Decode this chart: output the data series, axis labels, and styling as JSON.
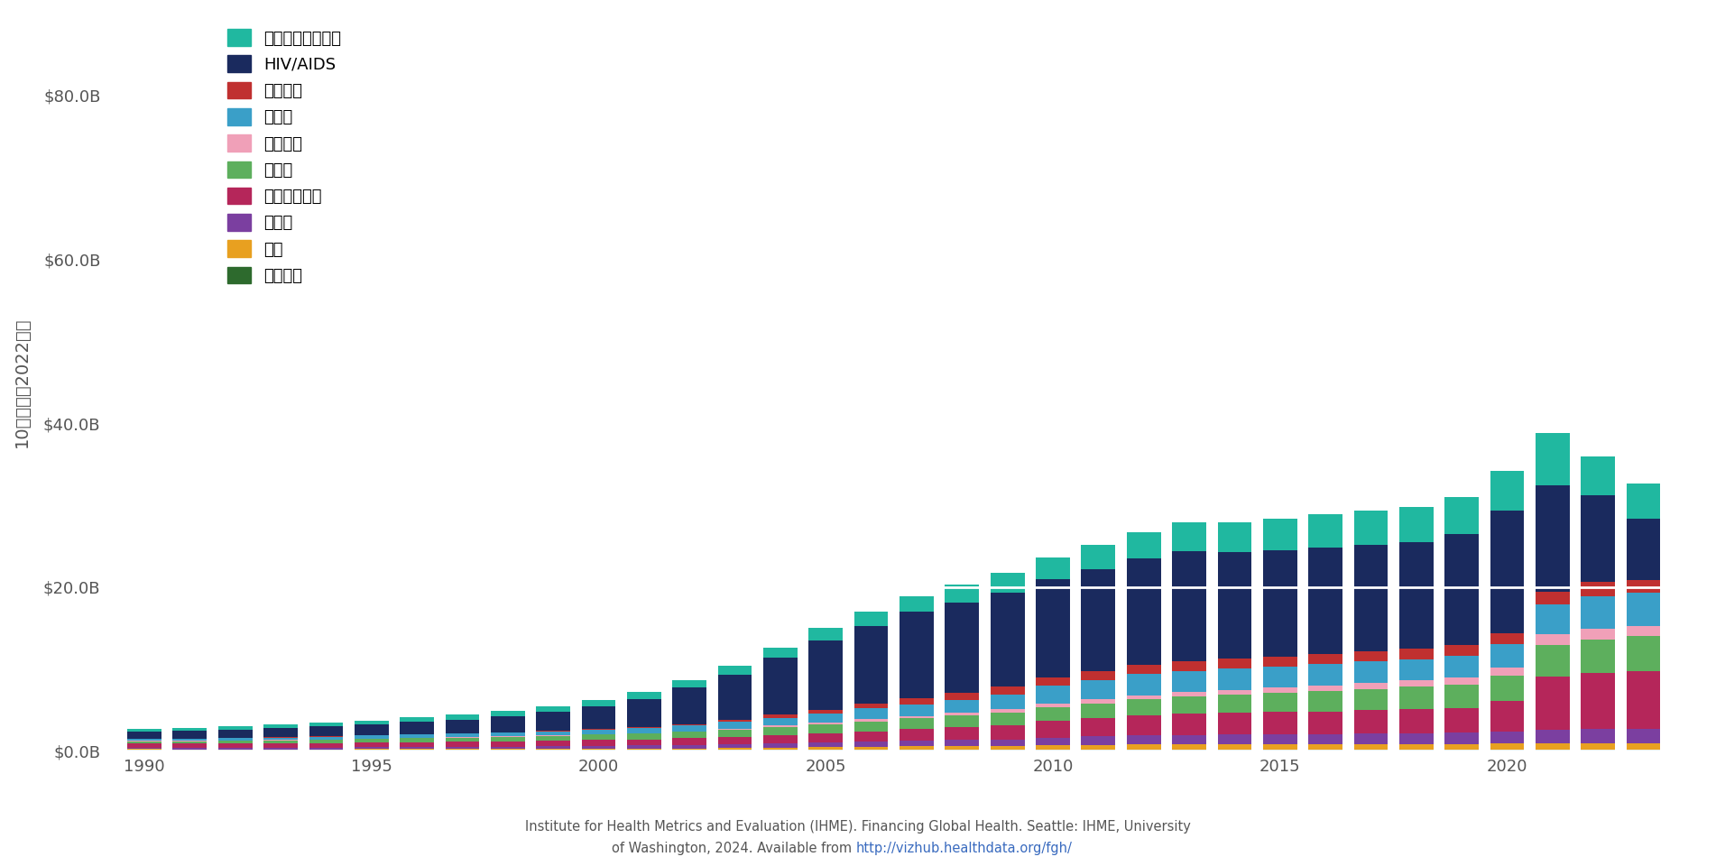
{
  "years": [
    1990,
    1991,
    1992,
    1993,
    1994,
    1995,
    1996,
    1997,
    1998,
    1999,
    2000,
    2001,
    2002,
    2003,
    2004,
    2005,
    2006,
    2007,
    2008,
    2009,
    2010,
    2011,
    2012,
    2013,
    2014,
    2015,
    2016,
    2017,
    2018,
    2019,
    2020,
    2021,
    2022,
    2023
  ],
  "categories_bottom_to_top": [
    "配分不能",
    "結核",
    "妍産婦",
    "その他感染症",
    "その他",
    "非感染症",
    "乳幼児",
    "マラリア",
    "HIV/AIDS",
    "保健システム強化"
  ],
  "colors_bottom_to_top": [
    "#2d6a2d",
    "#e8a020",
    "#7b3fa0",
    "#b5265a",
    "#5daf5d",
    "#f0a0b8",
    "#3a9fc8",
    "#c03030",
    "#1a2a5e",
    "#20b8a0"
  ],
  "data": {
    "配分不能": [
      0.15,
      0.13,
      0.14,
      0.13,
      0.13,
      0.13,
      0.13,
      0.13,
      0.14,
      0.14,
      0.15,
      0.15,
      0.16,
      0.16,
      0.17,
      0.17,
      0.17,
      0.17,
      0.17,
      0.17,
      0.18,
      0.18,
      0.18,
      0.18,
      0.18,
      0.18,
      0.18,
      0.18,
      0.18,
      0.18,
      0.18,
      0.19,
      0.19,
      0.19
    ],
    "結核": [
      0.05,
      0.05,
      0.05,
      0.06,
      0.06,
      0.07,
      0.08,
      0.08,
      0.08,
      0.09,
      0.1,
      0.11,
      0.13,
      0.16,
      0.22,
      0.27,
      0.31,
      0.36,
      0.41,
      0.46,
      0.52,
      0.55,
      0.59,
      0.6,
      0.61,
      0.61,
      0.61,
      0.64,
      0.65,
      0.66,
      0.7,
      0.75,
      0.76,
      0.76
    ],
    "妍産婦": [
      0.16,
      0.16,
      0.17,
      0.18,
      0.2,
      0.22,
      0.25,
      0.27,
      0.3,
      0.32,
      0.36,
      0.39,
      0.42,
      0.47,
      0.52,
      0.57,
      0.62,
      0.67,
      0.72,
      0.77,
      0.92,
      1.02,
      1.12,
      1.17,
      1.17,
      1.21,
      1.21,
      1.26,
      1.31,
      1.36,
      1.41,
      1.61,
      1.76,
      1.76
    ],
    "その他感染症": [
      0.5,
      0.52,
      0.53,
      0.54,
      0.56,
      0.58,
      0.6,
      0.62,
      0.64,
      0.66,
      0.7,
      0.75,
      0.82,
      0.9,
      1.0,
      1.12,
      1.28,
      1.45,
      1.6,
      1.75,
      2.0,
      2.2,
      2.4,
      2.55,
      2.65,
      2.72,
      2.8,
      2.88,
      2.96,
      3.04,
      3.8,
      6.5,
      6.8,
      7.0
    ],
    "その他": [
      0.3,
      0.32,
      0.35,
      0.37,
      0.4,
      0.44,
      0.47,
      0.5,
      0.55,
      0.6,
      0.65,
      0.7,
      0.78,
      0.88,
      1.0,
      1.1,
      1.2,
      1.3,
      1.4,
      1.55,
      1.7,
      1.85,
      2.0,
      2.1,
      2.2,
      2.35,
      2.5,
      2.6,
      2.7,
      2.85,
      3.1,
      3.9,
      4.1,
      4.3
    ],
    "非感染症": [
      0.05,
      0.05,
      0.05,
      0.05,
      0.05,
      0.05,
      0.05,
      0.05,
      0.05,
      0.05,
      0.05,
      0.05,
      0.08,
      0.11,
      0.16,
      0.21,
      0.26,
      0.26,
      0.31,
      0.36,
      0.41,
      0.46,
      0.51,
      0.56,
      0.61,
      0.66,
      0.71,
      0.76,
      0.81,
      0.86,
      1.01,
      1.26,
      1.26,
      1.26
    ],
    "乳幼児": [
      0.25,
      0.25,
      0.28,
      0.28,
      0.32,
      0.36,
      0.39,
      0.42,
      0.46,
      0.52,
      0.6,
      0.66,
      0.74,
      0.82,
      0.96,
      1.1,
      1.32,
      1.48,
      1.62,
      1.82,
      2.2,
      2.36,
      2.58,
      2.58,
      2.58,
      2.58,
      2.58,
      2.58,
      2.58,
      2.65,
      2.8,
      3.65,
      4.02,
      4.02
    ],
    "マラリア": [
      0.03,
      0.03,
      0.03,
      0.03,
      0.03,
      0.03,
      0.03,
      0.03,
      0.03,
      0.03,
      0.05,
      0.05,
      0.11,
      0.26,
      0.36,
      0.46,
      0.61,
      0.76,
      0.86,
      0.96,
      1.01,
      1.06,
      1.11,
      1.16,
      1.21,
      1.21,
      1.26,
      1.26,
      1.26,
      1.31,
      1.36,
      1.51,
      1.76,
      1.51
    ],
    "HIV/AIDS": [
      0.8,
      0.9,
      1.0,
      1.1,
      1.2,
      1.3,
      1.5,
      1.7,
      2.0,
      2.3,
      2.8,
      3.5,
      4.5,
      5.5,
      7.0,
      8.5,
      9.5,
      10.5,
      11.0,
      11.5,
      12.0,
      12.5,
      13.0,
      13.5,
      13.0,
      13.0,
      13.0,
      13.0,
      13.0,
      13.5,
      15.0,
      13.0,
      10.5,
      7.5
    ],
    "保健システム強化": [
      0.4,
      0.42,
      0.44,
      0.46,
      0.48,
      0.52,
      0.56,
      0.6,
      0.64,
      0.68,
      0.76,
      0.82,
      0.92,
      1.08,
      1.24,
      1.52,
      1.72,
      1.88,
      2.16,
      2.42,
      2.68,
      2.96,
      3.22,
      3.48,
      3.64,
      3.76,
      4.02,
      4.18,
      4.28,
      4.54,
      4.82,
      6.42,
      4.82,
      4.28
    ]
  },
  "ylabel": "10億ドル（2022年）",
  "background_color": "#ffffff",
  "plot_bg_color": "#f8f8f5",
  "ylim": [
    0,
    90
  ],
  "yticks": [
    0,
    20,
    40,
    60,
    80
  ],
  "ytick_labels": [
    "$0.0B",
    "$20.0B",
    "$40.0B",
    "$60.0B",
    "$80.0B"
  ],
  "xticks": [
    1990,
    1995,
    2000,
    2005,
    2010,
    2015,
    2020
  ],
  "footnote_line1": "Institute for Health Metrics and Evaluation (IHME). Financing Global Health. Seattle: IHME, University",
  "footnote_line2_plain": "of Washington, 2024. Available from ",
  "footnote_line2_link": "http://vizhub.healthdata.org/fgh/"
}
